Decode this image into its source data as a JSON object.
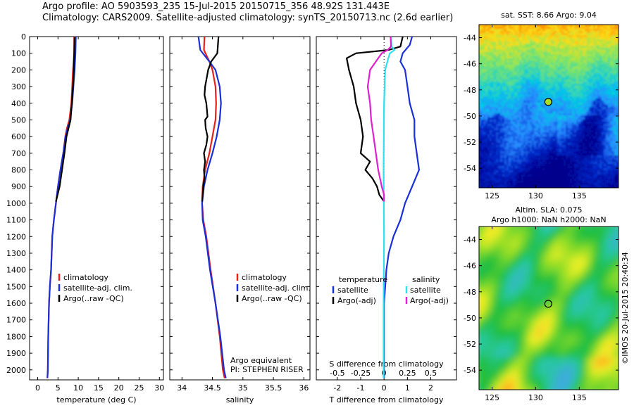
{
  "header": {
    "title_line1": "Argo profile: AO 5903593_235 15-Jul-2015 20150715_356 48.92S 131.443E",
    "title_line2": "Climatology: CARS2009. Satellite-adjusted climatology: synTS_20150713.nc (2.6d earlier)"
  },
  "colors": {
    "climatology": "#e8201a",
    "satellite": "#1a2fd8",
    "argo": "#000000",
    "sat_salinity": "#30e0f0",
    "argo_salinity": "#e020d0"
  },
  "chart_data": [
    {
      "type": "line",
      "panel": "temperature",
      "xlabel": "temperature (deg C)",
      "xlim": [
        -2,
        31
      ],
      "ylim": [
        2060,
        0
      ],
      "xticks": [
        0,
        5,
        10,
        15,
        20,
        25,
        30
      ],
      "yticks": [
        0,
        100,
        200,
        300,
        400,
        500,
        600,
        700,
        800,
        900,
        1000,
        1100,
        1200,
        1300,
        1400,
        1500,
        1600,
        1700,
        1800,
        1900,
        2000
      ],
      "legend": [
        "climatology",
        "satellite-adj. clim.",
        "Argo(..raw -QC)"
      ],
      "series": [
        {
          "name": "climatology",
          "color": "#e8201a",
          "x": [
            9.0,
            9.0,
            8.7,
            8.5,
            8.3,
            7.8,
            7.2,
            6.8,
            6.3,
            5.6,
            5.0,
            4.5,
            4.0,
            3.6,
            3.3,
            3.0,
            2.8,
            2.6,
            2.5,
            2.4
          ],
          "y": [
            0,
            100,
            200,
            300,
            400,
            500,
            550,
            600,
            700,
            800,
            900,
            1000,
            1100,
            1200,
            1400,
            1500,
            1600,
            1800,
            2000,
            2050
          ]
        },
        {
          "name": "satellite-adj. clim.",
          "color": "#1a2fd8",
          "x": [
            9.4,
            9.3,
            9.1,
            8.8,
            8.5,
            8.0,
            7.4,
            6.9,
            6.3,
            5.6,
            5.0,
            4.5,
            4.0,
            3.6,
            3.3,
            3.0,
            2.8,
            2.6,
            2.5,
            2.4
          ],
          "y": [
            0,
            100,
            200,
            300,
            400,
            500,
            550,
            600,
            700,
            800,
            900,
            1000,
            1100,
            1200,
            1400,
            1500,
            1600,
            1800,
            2000,
            2050
          ]
        },
        {
          "name": "Argo(..raw -QC)",
          "color": "#000000",
          "x": [
            9.1,
            9.0,
            8.9,
            8.7,
            8.4,
            8.1,
            7.6,
            7.1,
            6.6,
            6.0,
            5.4,
            4.5
          ],
          "y": [
            5,
            100,
            200,
            300,
            400,
            500,
            550,
            600,
            700,
            800,
            900,
            990
          ]
        }
      ]
    },
    {
      "type": "line",
      "panel": "salinity",
      "xlabel": "salinity",
      "xlim": [
        33.8,
        36.1
      ],
      "ylim": [
        2060,
        0
      ],
      "xticks": [
        "34",
        "34.5",
        "35",
        "35.5",
        "36"
      ],
      "legend": [
        "climatology",
        "satellite-adj. clim.",
        "Argo(..raw -QC)"
      ],
      "annotation": [
        "Argo equivalent",
        "PI: STEPHEN RISER"
      ],
      "series": [
        {
          "name": "climatology",
          "color": "#e8201a",
          "x": [
            34.37,
            34.36,
            34.45,
            34.5,
            34.55,
            34.56,
            34.55,
            34.5,
            34.45,
            34.38,
            34.34,
            34.33,
            34.35,
            34.4,
            34.47,
            34.55,
            34.62,
            34.67,
            34.7
          ],
          "y": [
            0,
            80,
            150,
            200,
            300,
            400,
            500,
            600,
            700,
            800,
            900,
            1000,
            1100,
            1200,
            1400,
            1600,
            1800,
            2000,
            2050
          ]
        },
        {
          "name": "satellite-adj. clim.",
          "color": "#1a2fd8",
          "x": [
            34.27,
            34.3,
            34.45,
            34.55,
            34.62,
            34.64,
            34.62,
            34.57,
            34.5,
            34.42,
            34.36,
            34.33,
            34.34,
            34.39,
            34.46,
            34.55,
            34.63,
            34.69,
            34.72
          ],
          "y": [
            0,
            80,
            150,
            200,
            300,
            400,
            500,
            600,
            700,
            800,
            900,
            1000,
            1100,
            1200,
            1400,
            1600,
            1800,
            2000,
            2050
          ]
        },
        {
          "name": "Argo(..raw -QC)",
          "color": "#000000",
          "x": [
            34.6,
            34.58,
            34.48,
            34.43,
            34.38,
            34.37,
            34.4,
            34.42,
            34.38,
            34.39,
            34.42,
            34.4,
            34.36,
            34.38,
            34.36,
            34.37,
            34.35,
            34.33
          ],
          "y": [
            0,
            100,
            150,
            200,
            300,
            350,
            400,
            480,
            500,
            550,
            600,
            650,
            700,
            750,
            800,
            850,
            900,
            990
          ]
        }
      ]
    },
    {
      "type": "line",
      "panel": "difference",
      "xlabel": "T difference from climatology",
      "xlabel_top": "S difference from climatology",
      "xlim": [
        -2.9,
        3.1
      ],
      "ylim": [
        2060,
        0
      ],
      "xticks": [
        "-2",
        "-1",
        "0",
        "1",
        "2"
      ],
      "xticks_top": [
        "-0.5",
        "-0.25",
        "0",
        "0.25",
        "0.5"
      ],
      "legend_temperature": [
        "temperature",
        "satellite",
        "Argo(-adj)"
      ],
      "legend_salinity": [
        "salinity",
        "satellite",
        "Argo(-adj)"
      ],
      "series": [
        {
          "name": "satellite",
          "color": "#1a2fd8",
          "x": [
            1.2,
            1.1,
            0.8,
            0.7,
            0.9,
            1.0,
            1.1,
            1.3,
            1.3,
            1.4,
            1.5,
            1.2,
            0.9,
            0.7,
            0.4,
            0.2,
            0.1,
            0.0,
            0.0
          ],
          "y": [
            0,
            50,
            100,
            150,
            200,
            300,
            400,
            500,
            600,
            700,
            800,
            900,
            1000,
            1100,
            1200,
            1300,
            1400,
            1600,
            2050
          ]
        },
        {
          "name": "Argo(-adj)",
          "color": "#000000",
          "x": [
            0.8,
            0.7,
            0.2,
            -1.2,
            -1.6,
            -1.5,
            -1.3,
            -1.2,
            -1.0,
            -0.9,
            -1.0,
            -0.6,
            -0.8,
            -0.5,
            -0.3,
            -0.2,
            0.0
          ],
          "y": [
            0,
            60,
            80,
            100,
            130,
            200,
            300,
            400,
            500,
            600,
            700,
            750,
            800,
            850,
            900,
            950,
            990
          ]
        },
        {
          "name": "satellite",
          "color": "#30e0f0",
          "x": [
            0.3,
            0.32,
            0.45,
            0.25,
            0.18,
            0.05,
            0.0,
            -0.02,
            0.0,
            -0.02,
            -0.02
          ],
          "y": [
            0,
            60,
            80,
            100,
            130,
            200,
            400,
            800,
            1200,
            1600,
            2050
          ]
        },
        {
          "name": "Argo(-adj)",
          "color": "#e020d0",
          "x": [
            0.28,
            0.3,
            0.15,
            -0.1,
            -0.35,
            -0.6,
            -0.7,
            -0.6,
            -0.55,
            -0.45,
            -0.35,
            -0.25,
            -0.1,
            0.0,
            0.0
          ],
          "y": [
            0,
            60,
            80,
            100,
            150,
            200,
            300,
            400,
            500,
            600,
            700,
            800,
            900,
            950,
            990
          ]
        }
      ]
    },
    {
      "type": "heatmap",
      "panel": "sst_map",
      "title": "sat. SST: 8.66 Argo: 9.04",
      "xticks": [
        "125",
        "130",
        "135"
      ],
      "yticks": [
        "-44",
        "-46",
        "-48",
        "-50",
        "-52",
        "-54"
      ],
      "xlim": [
        123.5,
        139.5
      ],
      "ylim": [
        -55.5,
        -43
      ],
      "argo_position": {
        "lon": 131.443,
        "lat": -48.92
      }
    },
    {
      "type": "heatmap",
      "panel": "sla_map",
      "title_line1": "Altim. SLA: 0.075",
      "title_line2": "Argo h1000: NaN h2000: NaN",
      "xticks": [
        "125",
        "130",
        "135"
      ],
      "yticks": [
        "-44",
        "-46",
        "-48",
        "-50",
        "-52",
        "-54"
      ],
      "xlim": [
        123.5,
        139.5
      ],
      "ylim": [
        -55.5,
        -43
      ],
      "argo_position": {
        "lon": 131.443,
        "lat": -48.92
      },
      "credit": "©IMOS 20-Jul-2015 20:40:34"
    }
  ]
}
